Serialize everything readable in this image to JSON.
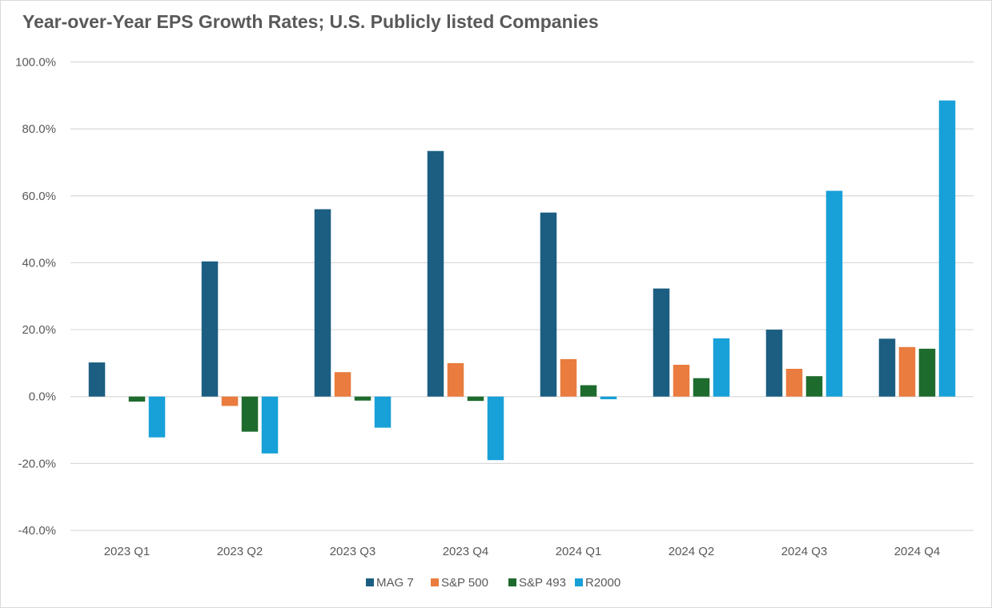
{
  "chart_data": {
    "type": "bar",
    "title": "Year-over-Year EPS Growth Rates; U.S. Publicly listed Companies",
    "xlabel": "",
    "ylabel": "",
    "ylim": [
      -40,
      100
    ],
    "ytick_values": [
      -40,
      -20,
      0,
      20,
      40,
      60,
      80,
      100
    ],
    "ytick_labels": [
      "-40.0%",
      "-20.0%",
      "0.0%",
      "20.0%",
      "40.0%",
      "60.0%",
      "80.0%",
      "100.0%"
    ],
    "grid": true,
    "legend_position": "bottom",
    "categories": [
      "2023 Q1",
      "2023 Q2",
      "2023 Q3",
      "2023 Q4",
      "2024 Q1",
      "2024 Q2",
      "2024 Q3",
      "2024 Q4"
    ],
    "series": [
      {
        "name": "MAG 7",
        "color": "#1b5e82",
        "values": [
          10.2,
          40.4,
          56.0,
          73.4,
          55.0,
          32.3,
          20.0,
          17.3
        ]
      },
      {
        "name": "S&P 500",
        "color": "#e97c3e",
        "values": [
          0.0,
          -2.8,
          7.3,
          10.0,
          11.2,
          9.5,
          8.3,
          14.8
        ]
      },
      {
        "name": "S&P 493",
        "color": "#1e6b2e",
        "values": [
          -1.5,
          -10.5,
          -1.2,
          -1.3,
          3.4,
          5.5,
          6.1,
          14.3
        ]
      },
      {
        "name": "R2000",
        "color": "#18a0d8",
        "values": [
          -12.2,
          -17.0,
          -9.3,
          -19.0,
          -0.8,
          17.4,
          61.5,
          88.5
        ]
      }
    ]
  }
}
